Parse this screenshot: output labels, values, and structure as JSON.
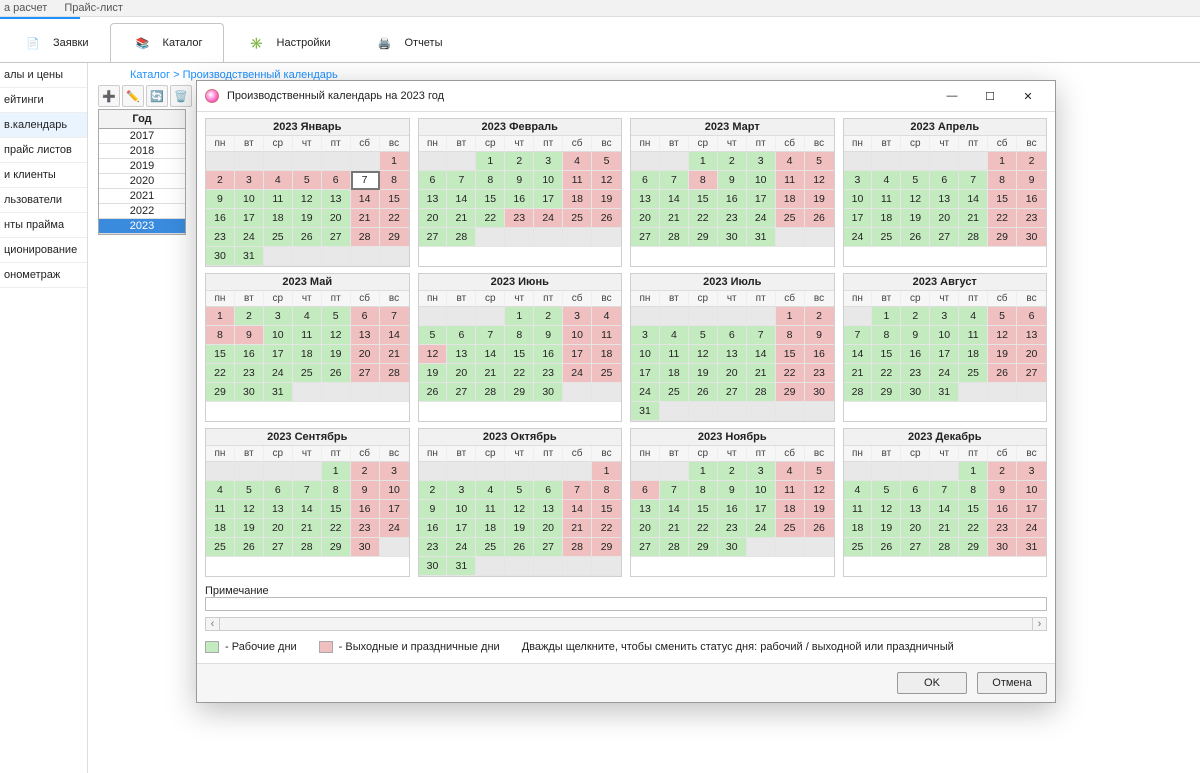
{
  "topmenu": {
    "m1": "а расчет",
    "m2": "Прайс-лист"
  },
  "ribbon": {
    "tab1": "Заявки",
    "tab2": "Каталог",
    "tab3": "Настройки",
    "tab4": "Отчеты"
  },
  "sidebar": {
    "items": [
      "алы и цены",
      "ейтинги",
      "в.календарь",
      "прайс листов",
      "и клиенты",
      "льзователи",
      "нты прайма",
      "ционирование",
      "онометраж"
    ]
  },
  "breadcrumb": {
    "root": "Каталог",
    "sep": ">",
    "page": "Производственный календарь"
  },
  "yearcol": {
    "header": "Год",
    "years": [
      "2017",
      "2018",
      "2019",
      "2020",
      "2021",
      "2022",
      "2023"
    ],
    "selected": "2023"
  },
  "modal": {
    "title": "Производственный календарь на 2023 год",
    "dows": [
      "пн",
      "вт",
      "ср",
      "чт",
      "пт",
      "сб",
      "вс"
    ],
    "legend": {
      "work": "- Рабочие дни",
      "holiday": "- Выходные и праздничные дни",
      "hint": "Дважды щелкните, чтобы сменить статус дня: рабочий / выходной или праздничный"
    },
    "note_label": "Примечание",
    "ok": "OK",
    "cancel": "Отмена",
    "colors": {
      "work": "#c4eabf",
      "holiday": "#f0c0c0",
      "empty": "#e8e8e8"
    },
    "months": [
      {
        "title": "2023 Январь",
        "start": 7,
        "len": 31,
        "hol": [
          1,
          2,
          3,
          4,
          5,
          6,
          7,
          8,
          14,
          15,
          21,
          22,
          28,
          29
        ],
        "today": 7
      },
      {
        "title": "2023 Февраль",
        "start": 3,
        "len": 28,
        "hol": [
          4,
          5,
          11,
          12,
          18,
          19,
          23,
          24,
          25,
          26
        ]
      },
      {
        "title": "2023 Март",
        "start": 3,
        "len": 31,
        "hol": [
          4,
          5,
          8,
          11,
          12,
          18,
          19,
          25,
          26
        ]
      },
      {
        "title": "2023 Апрель",
        "start": 6,
        "len": 30,
        "hol": [
          1,
          2,
          8,
          9,
          15,
          16,
          22,
          23,
          29,
          30
        ]
      },
      {
        "title": "2023 Май",
        "start": 1,
        "len": 31,
        "hol": [
          1,
          6,
          7,
          8,
          9,
          13,
          14,
          20,
          21,
          27,
          28
        ]
      },
      {
        "title": "2023 Июнь",
        "start": 4,
        "len": 30,
        "hol": [
          3,
          4,
          10,
          11,
          12,
          17,
          18,
          24,
          25
        ]
      },
      {
        "title": "2023 Июль",
        "start": 6,
        "len": 31,
        "hol": [
          1,
          2,
          8,
          9,
          15,
          16,
          22,
          23,
          29,
          30
        ]
      },
      {
        "title": "2023 Август",
        "start": 2,
        "len": 31,
        "hol": [
          5,
          6,
          12,
          13,
          19,
          20,
          26,
          27
        ]
      },
      {
        "title": "2023 Сентябрь",
        "start": 5,
        "len": 30,
        "hol": [
          2,
          3,
          9,
          10,
          16,
          17,
          23,
          24,
          30
        ]
      },
      {
        "title": "2023 Октябрь",
        "start": 7,
        "len": 31,
        "hol": [
          1,
          7,
          8,
          14,
          15,
          21,
          22,
          28,
          29
        ]
      },
      {
        "title": "2023 Ноябрь",
        "start": 3,
        "len": 30,
        "hol": [
          4,
          5,
          6,
          11,
          12,
          18,
          19,
          25,
          26
        ]
      },
      {
        "title": "2023 Декабрь",
        "start": 5,
        "len": 31,
        "hol": [
          2,
          3,
          9,
          10,
          16,
          17,
          23,
          24,
          30,
          31
        ]
      }
    ]
  }
}
